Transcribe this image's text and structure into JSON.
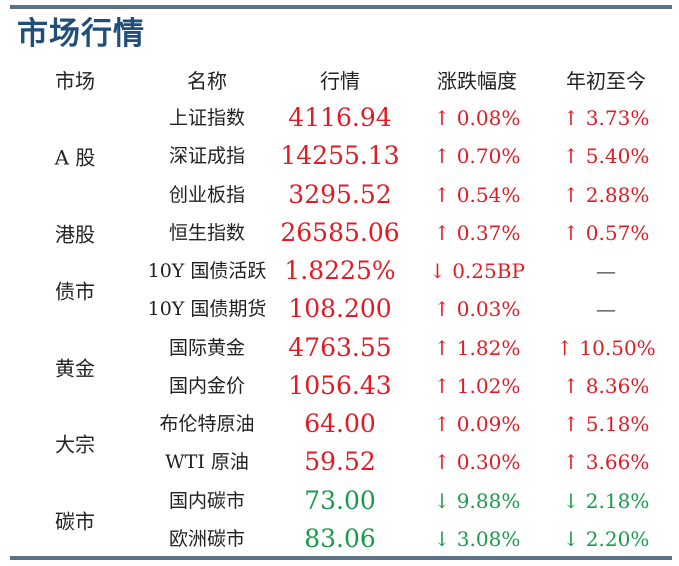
{
  "title": "市场行情",
  "headers": {
    "market": "市场",
    "name": "名称",
    "price": "行情",
    "change": "涨跌幅度",
    "ytd": "年初至今"
  },
  "colors": {
    "up": "#e01b24",
    "down": "#1a9b4b",
    "title": "#1f4e79",
    "rule": "#5a7189"
  },
  "markets": [
    {
      "label": "A 股",
      "rows": [
        0,
        2
      ]
    },
    {
      "label": "港股",
      "rows": [
        3,
        3
      ]
    },
    {
      "label": "债市",
      "rows": [
        4,
        5
      ]
    },
    {
      "label": "黄金",
      "rows": [
        6,
        7
      ]
    },
    {
      "label": "大宗",
      "rows": [
        8,
        9
      ]
    },
    {
      "label": "碳市",
      "rows": [
        10,
        11
      ]
    }
  ],
  "rows": [
    {
      "name": "上证指数",
      "price": "4116.94",
      "price_dir": "up",
      "change": "↑ 0.08%",
      "change_dir": "up",
      "ytd": "↑ 3.73%",
      "ytd_dir": "up"
    },
    {
      "name": "深证成指",
      "price": "14255.13",
      "price_dir": "up",
      "change": "↑ 0.70%",
      "change_dir": "up",
      "ytd": "↑ 5.40%",
      "ytd_dir": "up"
    },
    {
      "name": "创业板指",
      "price": "3295.52",
      "price_dir": "up",
      "change": "↑ 0.54%",
      "change_dir": "up",
      "ytd": "↑ 2.88%",
      "ytd_dir": "up"
    },
    {
      "name": "恒生指数",
      "price": "26585.06",
      "price_dir": "up",
      "change": "↑ 0.37%",
      "change_dir": "up",
      "ytd": "↑ 0.57%",
      "ytd_dir": "up"
    },
    {
      "name": "10Y 国债活跃",
      "price": "1.8225%",
      "price_dir": "up",
      "change": "↓ 0.25BP",
      "change_dir": "up",
      "ytd": "—",
      "ytd_dir": "flat"
    },
    {
      "name": "10Y 国债期货",
      "price": "108.200",
      "price_dir": "up",
      "change": "↑ 0.03%",
      "change_dir": "up",
      "ytd": "—",
      "ytd_dir": "flat"
    },
    {
      "name": "国际黄金",
      "price": "4763.55",
      "price_dir": "up",
      "change": "↑ 1.82%",
      "change_dir": "up",
      "ytd": "↑ 10.50%",
      "ytd_dir": "up"
    },
    {
      "name": "国内金价",
      "price": "1056.43",
      "price_dir": "up",
      "change": "↑ 1.02%",
      "change_dir": "up",
      "ytd": "↑ 8.36%",
      "ytd_dir": "up"
    },
    {
      "name": "布伦特原油",
      "price": "64.00",
      "price_dir": "up",
      "change": "↑ 0.09%",
      "change_dir": "up",
      "ytd": "↑ 5.18%",
      "ytd_dir": "up"
    },
    {
      "name": "WTI 原油",
      "price": "59.52",
      "price_dir": "up",
      "change": "↑ 0.30%",
      "change_dir": "up",
      "ytd": "↑ 3.66%",
      "ytd_dir": "up"
    },
    {
      "name": "国内碳市",
      "price": "73.00",
      "price_dir": "down",
      "change": "↓ 9.88%",
      "change_dir": "down",
      "ytd": "↓ 2.18%",
      "ytd_dir": "down"
    },
    {
      "name": "欧洲碳市",
      "price": "83.06",
      "price_dir": "down",
      "change": "↓ 3.08%",
      "change_dir": "down",
      "ytd": "↓ 2.20%",
      "ytd_dir": "down"
    }
  ]
}
